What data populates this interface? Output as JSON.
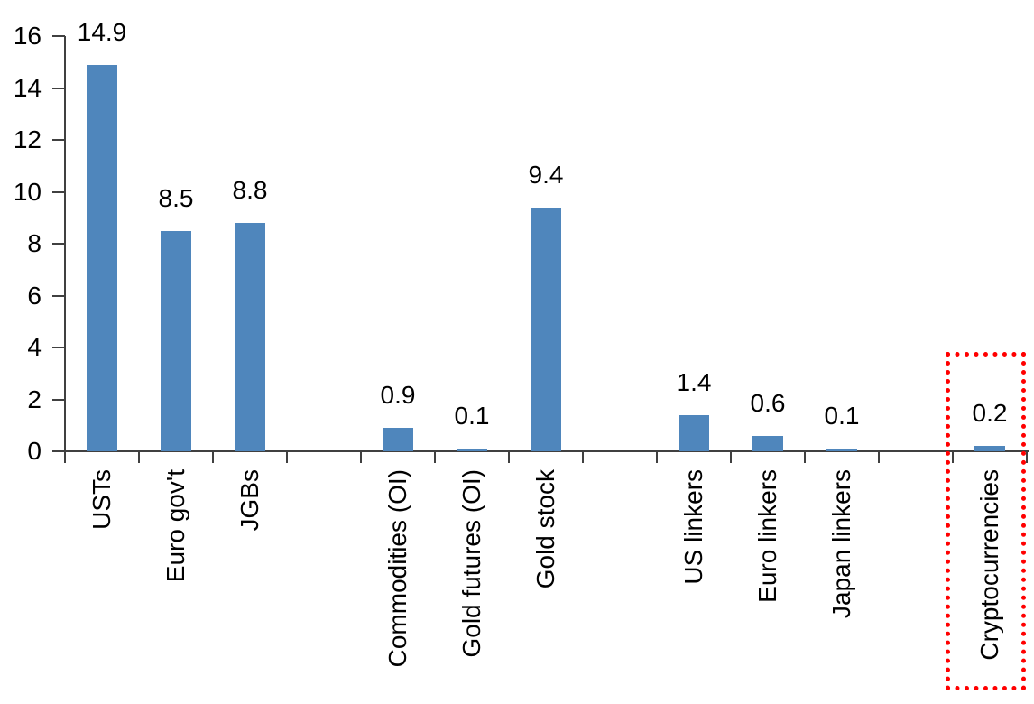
{
  "chart_data": {
    "type": "bar",
    "categories": [
      "USTs",
      "Euro gov't",
      "JGBs",
      "",
      "Commodities (OI)",
      "Gold futures (OI)",
      "Gold stock",
      "",
      "US linkers",
      "Euro linkers",
      "Japan linkers",
      "",
      "Cryptocurrencies"
    ],
    "values": [
      14.9,
      8.5,
      8.8,
      null,
      0.9,
      0.1,
      9.4,
      null,
      1.4,
      0.6,
      0.1,
      null,
      0.2
    ],
    "yticks": [
      0,
      2,
      4,
      6,
      8,
      10,
      12,
      14,
      16
    ],
    "ylim": [
      0,
      16
    ],
    "data_labels": true,
    "grid": false,
    "legend_position": "none",
    "bar_color": "#4f86bc",
    "axis_color": "#404040",
    "text_color": "#000000",
    "highlight": {
      "target": "Cryptocurrencies",
      "value": 0.2,
      "style": "dotted-rectangle",
      "color": "#ff0000"
    }
  }
}
